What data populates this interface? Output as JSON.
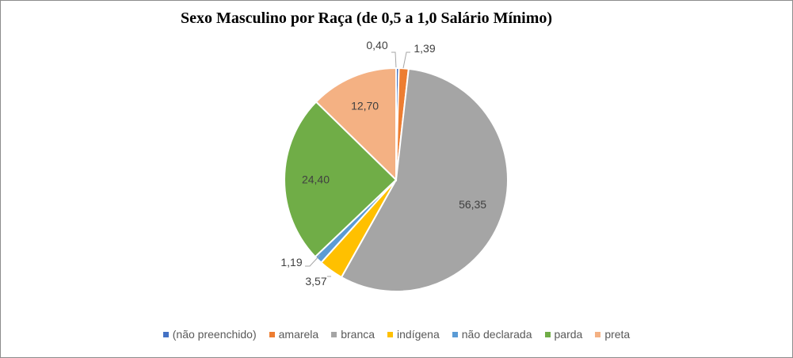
{
  "chart_data": {
    "type": "pie",
    "title": "Sexo Masculino por Raça (de 0,5 a 1,0 Salário Mínimo)",
    "slices": [
      {
        "label": "(não preenchido)",
        "value": 0.4,
        "display": "0,40",
        "color": "#4472C4"
      },
      {
        "label": "amarela",
        "value": 1.39,
        "display": "1,39",
        "color": "#ED7D31"
      },
      {
        "label": "branca",
        "value": 56.35,
        "display": "56,35",
        "color": "#A5A5A5"
      },
      {
        "label": "indígena",
        "value": 3.57,
        "display": "3,57",
        "color": "#FFC000"
      },
      {
        "label": "não declarada",
        "value": 1.19,
        "display": "1,19",
        "color": "#5B9BD5"
      },
      {
        "label": "parda",
        "value": 24.4,
        "display": "24,40",
        "color": "#70AD47"
      },
      {
        "label": "preta",
        "value": 12.7,
        "display": "12,70",
        "color": "#F4B183"
      }
    ],
    "legend_position": "bottom"
  }
}
